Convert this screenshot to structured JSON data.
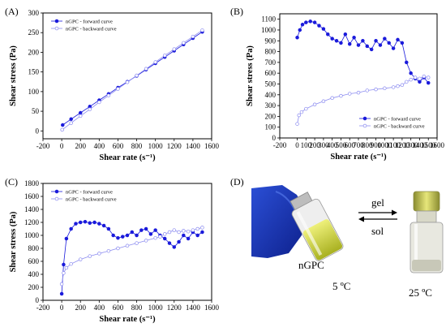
{
  "panel_labels": [
    "(A)",
    "(B)",
    "(C)",
    "(D)"
  ],
  "legend": {
    "forward": "nGPC - forward curve",
    "backward": "nGPC - backward curve"
  },
  "colors": {
    "forward": "#1a1adb",
    "backward": "#8c8cf0",
    "axis": "#000000"
  },
  "photo": {
    "gel_label": "gel",
    "sol_label": "sol",
    "sample_label": "nGPC",
    "temp_left": "5 ºC",
    "temp_right": "25 ºC",
    "description": "Glove holding vial of yellow liquid (5 °C) and upright vial of yellow gel (25 °C) with reversible arrows"
  },
  "chart_data": [
    {
      "panel": "(A)",
      "type": "scatter",
      "xlabel": "Shear rate (s⁻¹)",
      "ylabel": "Shear stress (Pa)",
      "xlim": [
        -200,
        1600
      ],
      "ylim": [
        -20,
        300
      ],
      "xticks": [
        -200,
        0,
        200,
        400,
        600,
        800,
        1000,
        1200,
        1400,
        1600
      ],
      "yticks": [
        0,
        50,
        100,
        150,
        200,
        250,
        300
      ],
      "legend_position": "top-left",
      "series": [
        {
          "name": "nGPC - forward curve",
          "style": "filled",
          "x": [
            10,
            100,
            200,
            300,
            400,
            500,
            600,
            700,
            800,
            900,
            1000,
            1100,
            1200,
            1300,
            1400,
            1500
          ],
          "y": [
            15,
            30,
            46,
            62,
            78,
            94,
            110,
            125,
            140,
            156,
            172,
            188,
            204,
            220,
            236,
            252
          ]
        },
        {
          "name": "nGPC - backward curve",
          "style": "open",
          "x": [
            1500,
            1400,
            1300,
            1200,
            1100,
            1000,
            900,
            800,
            700,
            600,
            500,
            400,
            300,
            200,
            100,
            5
          ],
          "y": [
            256,
            240,
            224,
            208,
            192,
            175,
            158,
            141,
            124,
            107,
            90,
            73,
            55,
            38,
            20,
            3
          ]
        }
      ]
    },
    {
      "panel": "(B)",
      "type": "scatter",
      "xlabel": "Shear rate (s⁻¹)",
      "ylabel": "Shear stress (Pa)",
      "xlim": [
        -200,
        1600
      ],
      "ylim": [
        0,
        1150
      ],
      "xticks": [
        -200,
        0,
        100,
        200,
        300,
        400,
        500,
        600,
        700,
        800,
        900,
        1000,
        1100,
        1200,
        1300,
        1400,
        1500,
        1600
      ],
      "yticks": [
        0,
        100,
        200,
        300,
        400,
        500,
        600,
        700,
        800,
        900,
        1000,
        1100
      ],
      "legend_position": "bottom-right",
      "series": [
        {
          "name": "nGPC - forward curve",
          "style": "filled",
          "x": [
            0,
            30,
            60,
            100,
            150,
            200,
            250,
            300,
            350,
            400,
            450,
            500,
            550,
            600,
            650,
            700,
            750,
            800,
            850,
            900,
            950,
            1000,
            1050,
            1100,
            1150,
            1200,
            1250,
            1300,
            1350,
            1400,
            1450,
            1500
          ],
          "y": [
            930,
            1000,
            1050,
            1070,
            1080,
            1070,
            1040,
            1010,
            960,
            920,
            900,
            880,
            960,
            870,
            930,
            860,
            900,
            850,
            820,
            900,
            860,
            920,
            880,
            830,
            910,
            880,
            700,
            600,
            550,
            520,
            560,
            510
          ]
        },
        {
          "name": "nGPC - backward curve",
          "style": "open",
          "x": [
            1500,
            1450,
            1400,
            1350,
            1300,
            1250,
            1200,
            1150,
            1100,
            1000,
            900,
            800,
            700,
            600,
            500,
            400,
            300,
            200,
            100,
            50,
            20,
            0
          ],
          "y": [
            560,
            570,
            550,
            560,
            540,
            520,
            490,
            480,
            470,
            460,
            450,
            440,
            420,
            410,
            390,
            370,
            340,
            310,
            270,
            240,
            210,
            130
          ]
        }
      ]
    },
    {
      "panel": "(C)",
      "type": "scatter",
      "xlabel": "Shear rate (s⁻¹)",
      "ylabel": "Shear stress (Pa)",
      "xlim": [
        -200,
        1600
      ],
      "ylim": [
        0,
        1800
      ],
      "xticks": [
        -200,
        0,
        200,
        400,
        600,
        800,
        1000,
        1200,
        1400,
        1600
      ],
      "yticks": [
        0,
        200,
        400,
        600,
        800,
        1000,
        1200,
        1400,
        1600,
        1800
      ],
      "legend_position": "top-left",
      "series": [
        {
          "name": "nGPC - forward curve",
          "style": "filled",
          "x": [
            0,
            20,
            50,
            100,
            150,
            200,
            250,
            300,
            350,
            400,
            450,
            500,
            550,
            600,
            650,
            700,
            750,
            800,
            850,
            900,
            950,
            1000,
            1050,
            1100,
            1150,
            1200,
            1250,
            1300,
            1350,
            1400,
            1450,
            1500
          ],
          "y": [
            100,
            550,
            950,
            1100,
            1180,
            1200,
            1210,
            1190,
            1200,
            1180,
            1150,
            1100,
            1000,
            960,
            980,
            1000,
            1050,
            1000,
            1080,
            1100,
            1020,
            1080,
            1000,
            950,
            880,
            820,
            900,
            1000,
            950,
            1050,
            1000,
            1050
          ]
        },
        {
          "name": "nGPC - backward curve",
          "style": "open",
          "x": [
            1500,
            1450,
            1400,
            1350,
            1300,
            1250,
            1200,
            1150,
            1100,
            1050,
            1000,
            900,
            800,
            700,
            600,
            500,
            400,
            300,
            200,
            100,
            50,
            20,
            0
          ],
          "y": [
            1120,
            1100,
            1080,
            1060,
            1070,
            1050,
            1080,
            1050,
            1020,
            980,
            960,
            920,
            880,
            840,
            800,
            760,
            720,
            680,
            630,
            560,
            500,
            420,
            250
          ]
        }
      ]
    }
  ]
}
